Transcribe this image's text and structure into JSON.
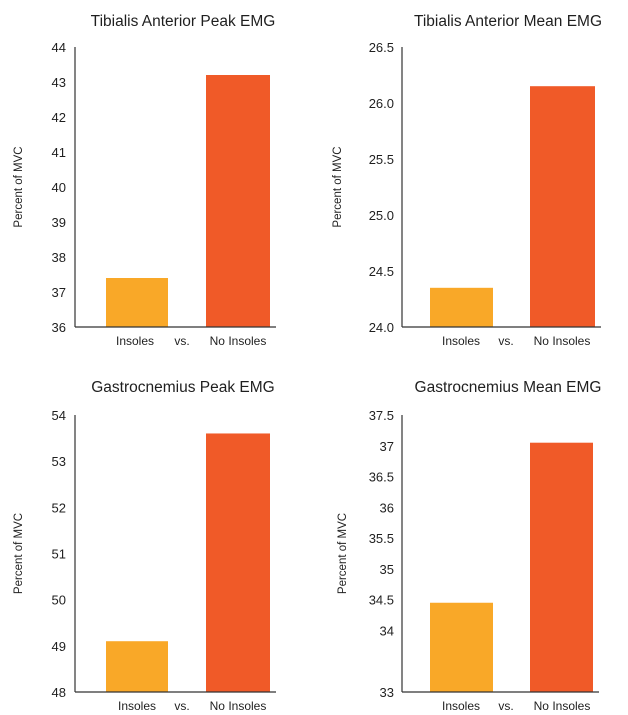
{
  "colors": {
    "insoles": "#F9A828",
    "no_insoles": "#F05A28"
  },
  "chart_data": [
    {
      "type": "bar",
      "title": "Tibialis Anterior Peak EMG",
      "ylabel": "Percent of MVC",
      "categories": [
        "Insoles",
        "No Insoles"
      ],
      "separator": "vs.",
      "values": [
        37.4,
        43.2
      ],
      "ylim": [
        36,
        44
      ],
      "yticks": [
        36,
        37,
        38,
        39,
        40,
        41,
        42,
        43,
        44
      ],
      "ytick_labels": [
        "36",
        "37",
        "38",
        "39",
        "40",
        "41",
        "42",
        "43",
        "44"
      ]
    },
    {
      "type": "bar",
      "title": "Tibialis Anterior Mean EMG",
      "ylabel": "Percent of MVC",
      "categories": [
        "Insoles",
        "No Insoles"
      ],
      "separator": "vs.",
      "values": [
        24.35,
        26.15
      ],
      "ylim": [
        24.0,
        26.5
      ],
      "yticks": [
        24.0,
        24.5,
        25.0,
        25.5,
        26.0,
        26.5
      ],
      "ytick_labels": [
        "24.0",
        "24.5",
        "25.0",
        "25.5",
        "26.0",
        "26.5"
      ]
    },
    {
      "type": "bar",
      "title": "Gastrocnemius Peak EMG",
      "ylabel": "Percent of MVC",
      "categories": [
        "Insoles",
        "No Insoles"
      ],
      "separator": "vs.",
      "values": [
        49.1,
        53.6
      ],
      "ylim": [
        48,
        54
      ],
      "yticks": [
        48,
        49,
        50,
        51,
        52,
        53,
        54
      ],
      "ytick_labels": [
        "48",
        "49",
        "50",
        "51",
        "52",
        "53",
        "54"
      ]
    },
    {
      "type": "bar",
      "title": "Gastrocnemius Mean EMG",
      "ylabel": "Percent of MVC",
      "categories": [
        "Insoles",
        "No Insoles"
      ],
      "separator": "vs.",
      "values": [
        34.45,
        37.05
      ],
      "ylim": [
        33,
        37.5
      ],
      "yticks": [
        33,
        33.5,
        34,
        34.5,
        35,
        35.5,
        36,
        36.5,
        37,
        37.5
      ],
      "ytick_labels": [
        "33",
        "",
        "34",
        "34.5",
        "35",
        "35.5",
        "36",
        "36.5",
        "37",
        "37.5"
      ]
    }
  ]
}
